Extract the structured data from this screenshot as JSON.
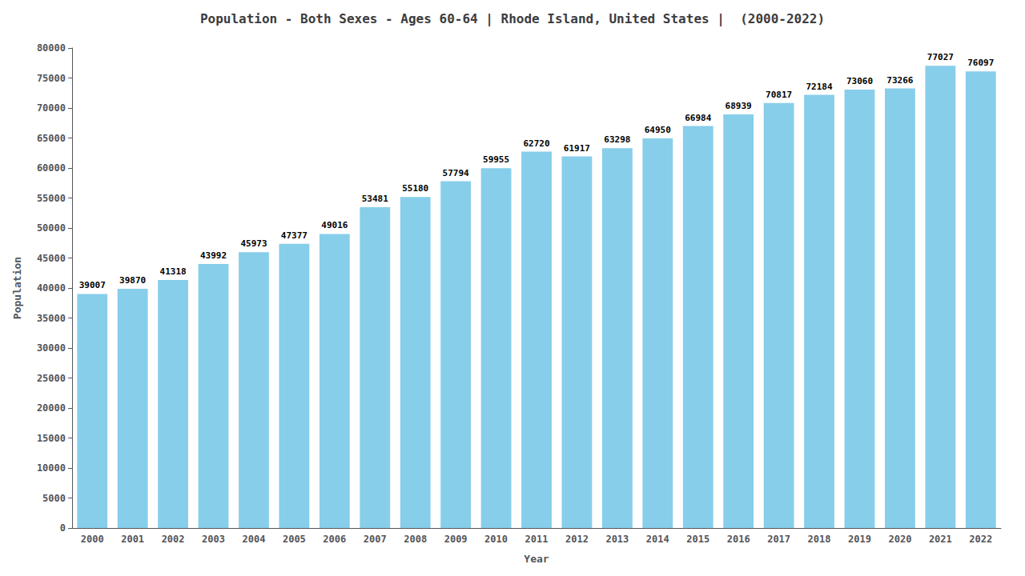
{
  "chart_data": {
    "type": "bar",
    "title": "Population - Both Sexes - Ages 60-64 | Rhode Island, United States |  (2000-2022)",
    "xlabel": "Year",
    "ylabel": "Population",
    "categories": [
      "2000",
      "2001",
      "2002",
      "2003",
      "2004",
      "2005",
      "2006",
      "2007",
      "2008",
      "2009",
      "2010",
      "2011",
      "2012",
      "2013",
      "2014",
      "2015",
      "2016",
      "2017",
      "2018",
      "2019",
      "2020",
      "2021",
      "2022"
    ],
    "values": [
      39007,
      39870,
      41318,
      43992,
      45973,
      47377,
      49016,
      53481,
      55180,
      57794,
      59955,
      62720,
      61917,
      63298,
      64950,
      66984,
      68939,
      70817,
      72184,
      73060,
      73266,
      77027,
      76097
    ],
    "color": "#87CEEB",
    "ylim": [
      0,
      80000
    ],
    "yticks": [
      0,
      5000,
      10000,
      15000,
      20000,
      25000,
      30000,
      35000,
      40000,
      45000,
      50000,
      55000,
      60000,
      65000,
      70000,
      75000,
      80000
    ],
    "grid": false,
    "data_labels": true
  }
}
